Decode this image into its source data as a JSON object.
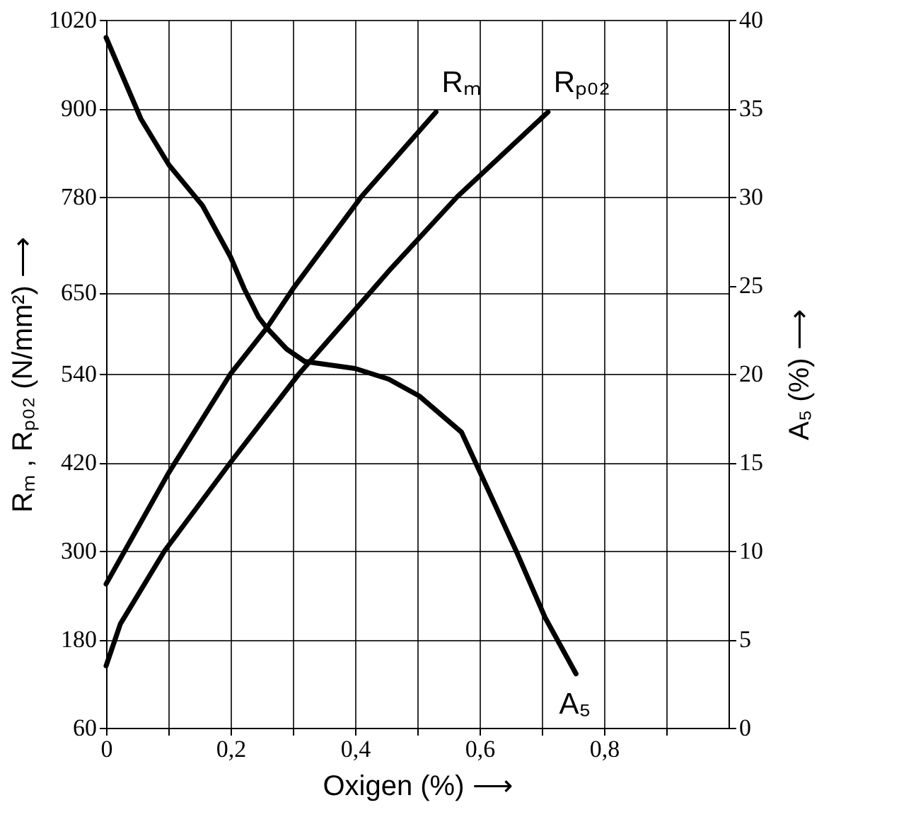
{
  "chart_data": {
    "type": "line",
    "xlabel": "Oxigen (%) ⟶",
    "ylabel": "Rₘ , Rₚ₀₂ (N/mm²) ⟶",
    "y2label": "A₅ (%) ⟶",
    "xlim": [
      0,
      1.0
    ],
    "xticks": [
      0,
      {
        "value": 0.1,
        "label": null
      },
      {
        "value": 0.2,
        "label": "0,2"
      },
      {
        "value": 0.3,
        "label": null
      },
      {
        "value": 0.4,
        "label": "0,4"
      },
      {
        "value": 0.5,
        "label": null
      },
      {
        "value": 0.6,
        "label": "0,6"
      },
      {
        "value": 0.7,
        "label": null
      },
      {
        "value": 0.8,
        "label": "0,8"
      },
      {
        "value": 0.9,
        "label": null
      }
    ],
    "ylim": [
      60,
      1020
    ],
    "yticks": [
      60,
      180,
      300,
      420,
      540,
      650,
      780,
      900,
      1020
    ],
    "y2lim": [
      0,
      40
    ],
    "y2ticks": [
      0,
      5,
      10,
      15,
      20,
      25,
      30,
      35,
      40
    ],
    "grid": true,
    "series": [
      {
        "name": "Rₘ",
        "color": "#000000",
        "x": [
          0,
          0.05,
          0.1,
          0.2,
          0.258,
          0.3,
          0.41,
          0.53
        ],
        "values": [
          255,
          330,
          405,
          540,
          602,
          655,
          780,
          895
        ]
      },
      {
        "name": "Rₚ₀₂",
        "color": "#000000",
        "x": [
          0,
          0.023,
          0.094,
          0.2,
          0.31,
          0.424,
          0.458,
          0.564,
          0.71
        ],
        "values": [
          144,
          201,
          300,
          420,
          540,
          650,
          683,
          780,
          895
        ]
      },
      {
        "name": "A₅",
        "color": "#000000",
        "axis": "y2",
        "x": [
          0,
          0.056,
          0.101,
          0.155,
          0.2,
          0.222,
          0.245,
          0.258,
          0.29,
          0.319,
          0.4,
          0.454,
          0.503,
          0.571,
          0.6,
          0.66,
          0.705,
          0.755
        ],
        "values": [
          39.0,
          34.4,
          31.8,
          29.5,
          26.6,
          24.8,
          23.2,
          22.6,
          21.4,
          20.7,
          20.3,
          19.7,
          18.75,
          16.7,
          14.5,
          9.9,
          6.25,
          3.05
        ]
      }
    ]
  }
}
